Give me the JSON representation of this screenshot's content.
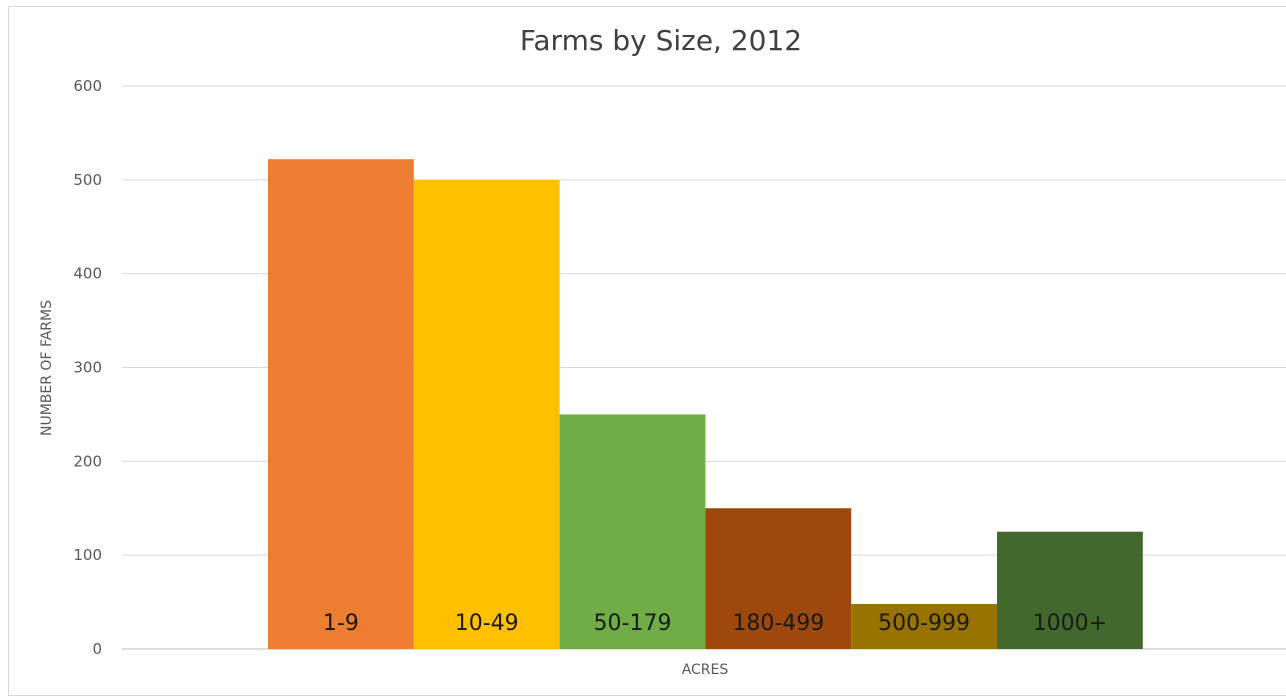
{
  "chart_data": {
    "type": "bar",
    "title": "Farms by Size, 2012",
    "xlabel": "ACRES",
    "ylabel": "NUMBER OF FARMS",
    "categories": [
      "1-9",
      "10-49",
      "50-179",
      "180-499",
      "500-999",
      "1000+"
    ],
    "values": [
      522,
      500,
      250,
      150,
      48,
      125
    ],
    "colors": [
      "#ed7d31",
      "#ffc000",
      "#70ad47",
      "#9e480e",
      "#997300",
      "#43682b"
    ],
    "ylim": [
      0,
      600
    ],
    "yticks": [
      0,
      100,
      200,
      300,
      400,
      500,
      600
    ],
    "grid": true,
    "legend": "none",
    "category_labels_inside_bars": true
  }
}
